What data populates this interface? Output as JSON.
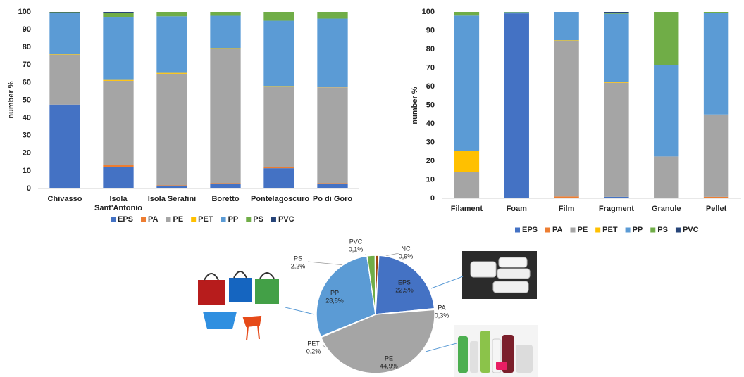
{
  "chart_data": [
    {
      "type": "bar",
      "stacked": true,
      "y_label": "number %",
      "categories": [
        "Chivasso",
        "Isola Sant'Antonio",
        "Isola Serafini",
        "Boretto",
        "Pontelagoscuro",
        "Po di Goro"
      ],
      "series": [
        {
          "name": "EPS",
          "color": "#4472c4",
          "values": [
            47.5,
            12,
            1.5,
            2.5,
            11.5,
            2.8
          ]
        },
        {
          "name": "PA",
          "color": "#ed7d31",
          "values": [
            0,
            1.5,
            0.3,
            0.5,
            0.8,
            0.2
          ]
        },
        {
          "name": "PE",
          "color": "#a5a5a5",
          "values": [
            28.2,
            47.5,
            63.2,
            76,
            45.5,
            54.3
          ]
        },
        {
          "name": "PET",
          "color": "#ffc000",
          "values": [
            0.3,
            0.5,
            0.5,
            0.5,
            0.2,
            0.2
          ]
        },
        {
          "name": "PP",
          "color": "#5b9bd5",
          "values": [
            23.2,
            35.7,
            32,
            18.3,
            37,
            38.7
          ]
        },
        {
          "name": "PS",
          "color": "#70ad47",
          "values": [
            0.6,
            2,
            2.5,
            2.2,
            5,
            3.8
          ]
        },
        {
          "name": "PVC",
          "color": "#264478",
          "values": [
            0.2,
            0.8,
            0,
            0,
            0,
            0
          ]
        }
      ],
      "ylim": [
        0,
        100
      ],
      "yticks": [
        0,
        10,
        20,
        30,
        40,
        50,
        60,
        70,
        80,
        90,
        100
      ],
      "grid": false,
      "legend": "bottom"
    },
    {
      "type": "bar",
      "stacked": true,
      "y_label": "number %",
      "categories": [
        "Filament",
        "Foam",
        "Film",
        "Fragment",
        "Granule",
        "Pellet"
      ],
      "series": [
        {
          "name": "EPS",
          "color": "#4472c4",
          "values": [
            0,
            99.2,
            0,
            0.8,
            0,
            0
          ]
        },
        {
          "name": "PA",
          "color": "#ed7d31",
          "values": [
            0,
            0,
            1,
            0,
            0,
            0.8
          ]
        },
        {
          "name": "PE",
          "color": "#a5a5a5",
          "values": [
            14,
            0,
            83.5,
            61.2,
            22.5,
            44.2
          ]
        },
        {
          "name": "PET",
          "color": "#ffc000",
          "values": [
            11.5,
            0,
            0.3,
            0.5,
            0,
            0
          ]
        },
        {
          "name": "PP",
          "color": "#5b9bd5",
          "values": [
            72.5,
            0.6,
            15.2,
            36.5,
            49,
            54.5
          ]
        },
        {
          "name": "PS",
          "color": "#70ad47",
          "values": [
            2,
            0.2,
            0,
            0.5,
            28.5,
            0.5
          ]
        },
        {
          "name": "PVC",
          "color": "#264478",
          "values": [
            0,
            0,
            0,
            0.5,
            0,
            0
          ]
        }
      ],
      "ylim": [
        0,
        100
      ],
      "yticks": [
        0,
        10,
        20,
        30,
        40,
        50,
        60,
        70,
        80,
        90,
        100
      ],
      "grid": false,
      "legend": "bottom"
    },
    {
      "type": "pie",
      "categories": [
        "NC",
        "EPS",
        "PA",
        "PE",
        "PET",
        "PP",
        "PS",
        "PVC"
      ],
      "values": [
        0.9,
        22.5,
        0.3,
        44.9,
        0.2,
        28.8,
        2.2,
        0.1
      ],
      "value_labels": [
        "0,9%",
        "22,5%",
        "0,3%",
        "44,9%",
        "0,2%",
        "28,8%",
        "2,2%",
        "0,1%"
      ],
      "colors": [
        "#9e480e",
        "#4472c4",
        "#ed7d31",
        "#a5a5a5",
        "#ffc000",
        "#5b9bd5",
        "#70ad47",
        "#264478"
      ]
    }
  ]
}
